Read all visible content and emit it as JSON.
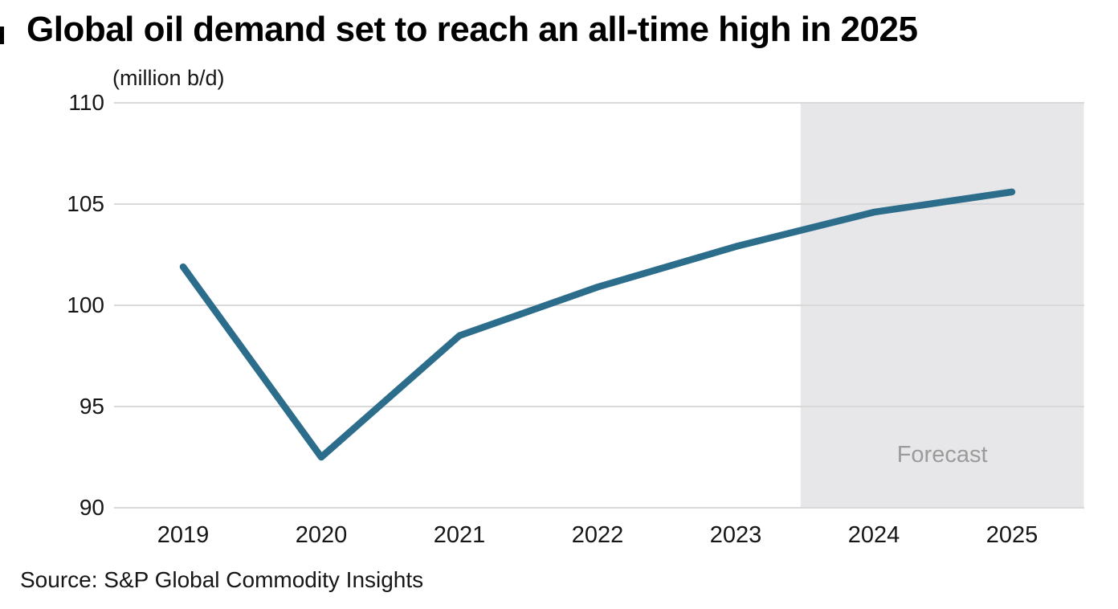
{
  "title": "Global oil demand set to reach an all-time high in 2025",
  "units_label": "(million b/d)",
  "forecast_label": "Forecast",
  "source": "Source: S&P Global Commodity Insights",
  "colors": {
    "line": "#2c6d8c",
    "forecast_band": "#e7e7e9",
    "gridline": "#d9d9d9",
    "axis_text": "#161616",
    "forecast_text": "#9b9b9b"
  },
  "chart_data": {
    "type": "line",
    "title": "Global oil demand set to reach an all-time high in 2025",
    "ylabel": "(million b/d)",
    "categories": [
      2019,
      2020,
      2021,
      2022,
      2023,
      2024,
      2025
    ],
    "series": [
      {
        "name": "Global oil demand (million b/d)",
        "values": [
          101.9,
          92.5,
          98.5,
          100.9,
          102.9,
          104.6,
          105.6
        ]
      }
    ],
    "ylim": [
      90,
      110
    ],
    "yticks": [
      110,
      105,
      100,
      95,
      90
    ],
    "grid": "horizontal",
    "legend": "none",
    "forecast_region": {
      "label": "Forecast",
      "start_x": 2023.47,
      "end_x": 2025.52
    }
  }
}
